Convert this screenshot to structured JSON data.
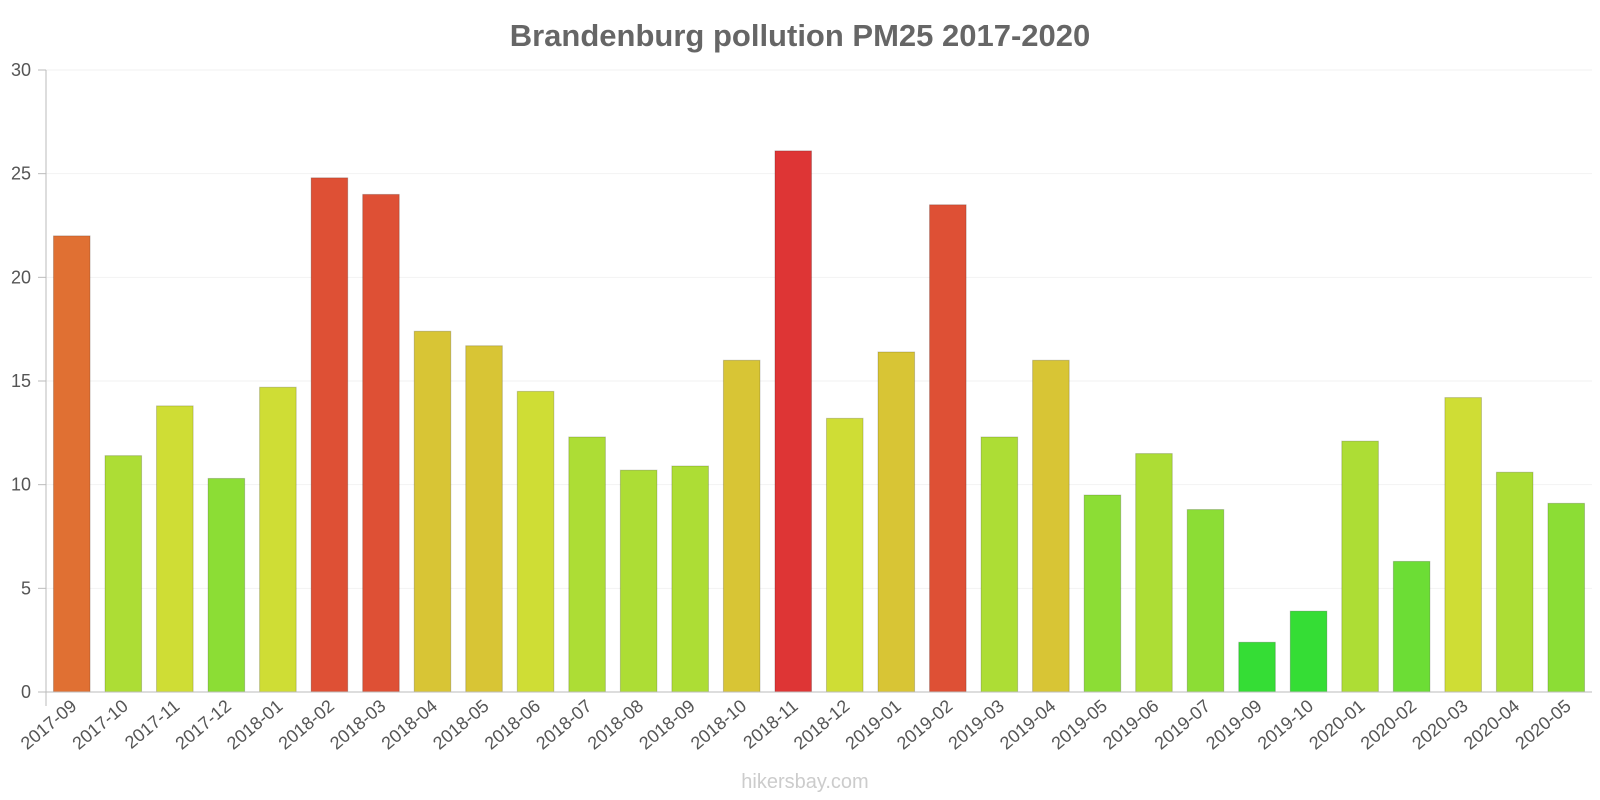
{
  "chart_data": {
    "type": "bar",
    "title": "Brandenburg pollution PM25 2017-2020",
    "xlabel": "",
    "ylabel": "",
    "ylim": [
      0,
      30
    ],
    "yticks": [
      0,
      5,
      10,
      15,
      20,
      25,
      30
    ],
    "grid": true,
    "categories": [
      "2017-09",
      "2017-10",
      "2017-11",
      "2017-12",
      "2018-01",
      "2018-02",
      "2018-03",
      "2018-04",
      "2018-05",
      "2018-06",
      "2018-07",
      "2018-08",
      "2018-09",
      "2018-10",
      "2018-11",
      "2018-12",
      "2019-01",
      "2019-02",
      "2019-03",
      "2019-04",
      "2019-05",
      "2019-06",
      "2019-07",
      "2019-09",
      "2019-10",
      "2020-01",
      "2020-02",
      "2020-03",
      "2020-04",
      "2020-05"
    ],
    "values": [
      22,
      11.4,
      13.8,
      10.3,
      14.7,
      24.8,
      24,
      17.4,
      16.7,
      14.5,
      12.3,
      10.7,
      10.9,
      16,
      26.1,
      13.2,
      16.4,
      23.5,
      12.3,
      16,
      9.5,
      11.5,
      8.8,
      2.4,
      3.9,
      12.1,
      6.3,
      14.2,
      10.6,
      9.1
    ],
    "colors": [
      "#e07033",
      "#addd35",
      "#cfdd35",
      "#8cdd35",
      "#cfdd35",
      "#de5035",
      "#de5035",
      "#d8c535",
      "#d8c535",
      "#cfdd35",
      "#addd35",
      "#addd35",
      "#addd35",
      "#d8c535",
      "#de3535",
      "#cfdd35",
      "#d8c535",
      "#de5035",
      "#addd35",
      "#d8c535",
      "#8cdd35",
      "#addd35",
      "#8cdd35",
      "#35dd35",
      "#35dd35",
      "#addd35",
      "#6cdd35",
      "#cfdd35",
      "#addd35",
      "#8cdd35"
    ]
  },
  "watermark": "hikersbay.com"
}
